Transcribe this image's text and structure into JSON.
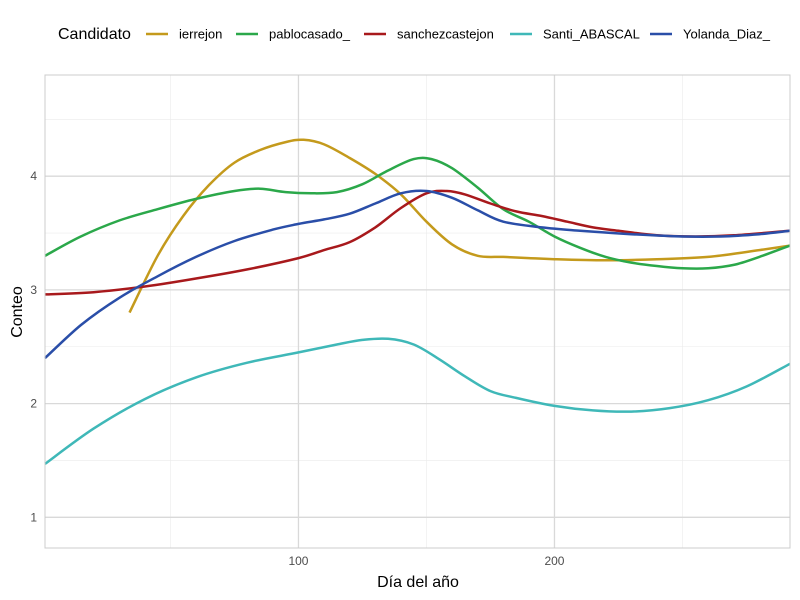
{
  "chart_data": {
    "type": "line",
    "xlabel": "Día del año",
    "ylabel": "Conteo",
    "legend_title": "Candidato",
    "legend_position": "top",
    "grid": true,
    "xlim": [
      1,
      292
    ],
    "ylim": [
      0.73,
      4.89
    ],
    "x_ticks": [
      100,
      200
    ],
    "y_ticks": [
      1,
      2,
      3,
      4
    ],
    "series": [
      {
        "name": "ierrejon",
        "color": "#C49A1C",
        "points": [
          [
            34,
            2.8
          ],
          [
            45,
            3.3
          ],
          [
            55,
            3.65
          ],
          [
            65,
            3.92
          ],
          [
            75,
            4.12
          ],
          [
            85,
            4.23
          ],
          [
            95,
            4.3
          ],
          [
            102,
            4.32
          ],
          [
            110,
            4.28
          ],
          [
            120,
            4.16
          ],
          [
            130,
            4.02
          ],
          [
            140,
            3.84
          ],
          [
            150,
            3.6
          ],
          [
            160,
            3.4
          ],
          [
            170,
            3.3
          ],
          [
            180,
            3.29
          ],
          [
            190,
            3.28
          ],
          [
            200,
            3.27
          ],
          [
            220,
            3.26
          ],
          [
            240,
            3.27
          ],
          [
            260,
            3.29
          ],
          [
            280,
            3.35
          ],
          [
            292,
            3.39
          ]
        ]
      },
      {
        "name": "pablocasado_",
        "color": "#2BA84A",
        "points": [
          [
            1,
            3.3
          ],
          [
            15,
            3.47
          ],
          [
            30,
            3.61
          ],
          [
            45,
            3.71
          ],
          [
            60,
            3.8
          ],
          [
            75,
            3.87
          ],
          [
            85,
            3.89
          ],
          [
            95,
            3.86
          ],
          [
            105,
            3.85
          ],
          [
            115,
            3.86
          ],
          [
            125,
            3.93
          ],
          [
            135,
            4.05
          ],
          [
            145,
            4.15
          ],
          [
            152,
            4.15
          ],
          [
            160,
            4.07
          ],
          [
            170,
            3.9
          ],
          [
            180,
            3.71
          ],
          [
            190,
            3.6
          ],
          [
            200,
            3.47
          ],
          [
            210,
            3.37
          ],
          [
            220,
            3.29
          ],
          [
            230,
            3.24
          ],
          [
            240,
            3.21
          ],
          [
            250,
            3.19
          ],
          [
            260,
            3.19
          ],
          [
            270,
            3.22
          ],
          [
            280,
            3.29
          ],
          [
            292,
            3.39
          ]
        ]
      },
      {
        "name": "sanchezcastejon",
        "color": "#A8191C",
        "points": [
          [
            1,
            2.96
          ],
          [
            20,
            2.98
          ],
          [
            40,
            3.03
          ],
          [
            60,
            3.1
          ],
          [
            80,
            3.18
          ],
          [
            100,
            3.28
          ],
          [
            110,
            3.35
          ],
          [
            120,
            3.42
          ],
          [
            130,
            3.55
          ],
          [
            140,
            3.72
          ],
          [
            150,
            3.85
          ],
          [
            158,
            3.87
          ],
          [
            165,
            3.84
          ],
          [
            175,
            3.76
          ],
          [
            185,
            3.69
          ],
          [
            195,
            3.65
          ],
          [
            205,
            3.6
          ],
          [
            215,
            3.55
          ],
          [
            225,
            3.52
          ],
          [
            240,
            3.48
          ],
          [
            255,
            3.47
          ],
          [
            270,
            3.48
          ],
          [
            292,
            3.52
          ]
        ]
      },
      {
        "name": "Santi_ABASCAL",
        "color": "#3FB8B8",
        "points": [
          [
            1,
            1.47
          ],
          [
            20,
            1.78
          ],
          [
            40,
            2.04
          ],
          [
            60,
            2.23
          ],
          [
            80,
            2.36
          ],
          [
            100,
            2.45
          ],
          [
            115,
            2.52
          ],
          [
            125,
            2.56
          ],
          [
            135,
            2.57
          ],
          [
            145,
            2.52
          ],
          [
            155,
            2.39
          ],
          [
            165,
            2.24
          ],
          [
            175,
            2.11
          ],
          [
            185,
            2.05
          ],
          [
            200,
            1.98
          ],
          [
            215,
            1.94
          ],
          [
            230,
            1.93
          ],
          [
            245,
            1.96
          ],
          [
            260,
            2.03
          ],
          [
            275,
            2.15
          ],
          [
            292,
            2.35
          ]
        ]
      },
      {
        "name": "Yolanda_Diaz_",
        "color": "#2A4EA8",
        "points": [
          [
            1,
            2.4
          ],
          [
            15,
            2.69
          ],
          [
            30,
            2.93
          ],
          [
            45,
            3.12
          ],
          [
            60,
            3.29
          ],
          [
            75,
            3.43
          ],
          [
            90,
            3.53
          ],
          [
            100,
            3.58
          ],
          [
            110,
            3.62
          ],
          [
            120,
            3.67
          ],
          [
            130,
            3.76
          ],
          [
            140,
            3.85
          ],
          [
            150,
            3.87
          ],
          [
            160,
            3.81
          ],
          [
            170,
            3.7
          ],
          [
            180,
            3.6
          ],
          [
            195,
            3.55
          ],
          [
            210,
            3.52
          ],
          [
            230,
            3.49
          ],
          [
            250,
            3.47
          ],
          [
            265,
            3.47
          ],
          [
            280,
            3.49
          ],
          [
            292,
            3.52
          ]
        ]
      }
    ]
  }
}
